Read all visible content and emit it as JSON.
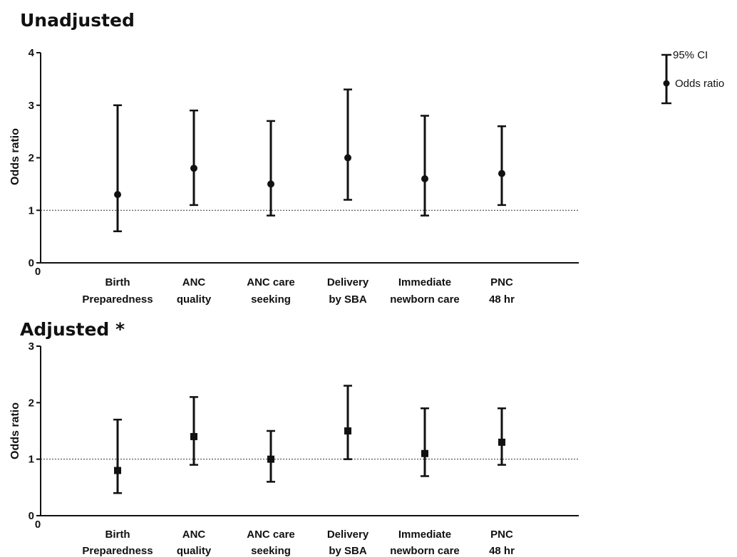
{
  "chart_data": [
    {
      "type": "scatter",
      "title": "Unadjusted",
      "ylabel": "Odds ratio",
      "ylim": [
        0,
        4
      ],
      "yticks": [
        "0",
        "1",
        "2",
        "3",
        "4"
      ],
      "reference_line": 1,
      "marker": "circle",
      "categories": [
        [
          "Birth",
          "Preparedness"
        ],
        [
          "ANC",
          "quality"
        ],
        [
          "ANC care",
          "seeking"
        ],
        [
          "Delivery",
          "by SBA"
        ],
        [
          "Immediate",
          "newborn care"
        ],
        [
          "PNC",
          "48 hr"
        ]
      ],
      "series": [
        {
          "odds_ratio": [
            1.3,
            1.8,
            1.5,
            2.0,
            1.6,
            1.7
          ],
          "ci_lower": [
            0.6,
            1.1,
            0.9,
            1.2,
            0.9,
            1.1
          ],
          "ci_upper": [
            3.0,
            2.9,
            2.7,
            3.3,
            2.8,
            2.6
          ]
        }
      ]
    },
    {
      "type": "scatter",
      "title": "Adjusted *",
      "ylabel": "Odds ratio",
      "ylim": [
        0,
        3
      ],
      "yticks": [
        "0",
        "1",
        "2",
        "3"
      ],
      "reference_line": 1,
      "marker": "square",
      "categories": [
        [
          "Birth",
          "Preparedness"
        ],
        [
          "ANC",
          "quality"
        ],
        [
          "ANC care",
          "seeking"
        ],
        [
          "Delivery",
          "by SBA"
        ],
        [
          "Immediate",
          "newborn care"
        ],
        [
          "PNC",
          "48 hr"
        ]
      ],
      "series": [
        {
          "odds_ratio": [
            0.8,
            1.4,
            1.0,
            1.5,
            1.1,
            1.3
          ],
          "ci_lower": [
            0.4,
            0.9,
            0.6,
            1.0,
            0.7,
            0.9
          ],
          "ci_upper": [
            1.7,
            2.1,
            1.5,
            2.3,
            1.9,
            1.9
          ]
        }
      ]
    }
  ],
  "legend": {
    "ci_label": "95% CI",
    "or_label": "Odds ratio"
  },
  "colors": {
    "ink": "#111111",
    "reference_line": "#333333"
  }
}
